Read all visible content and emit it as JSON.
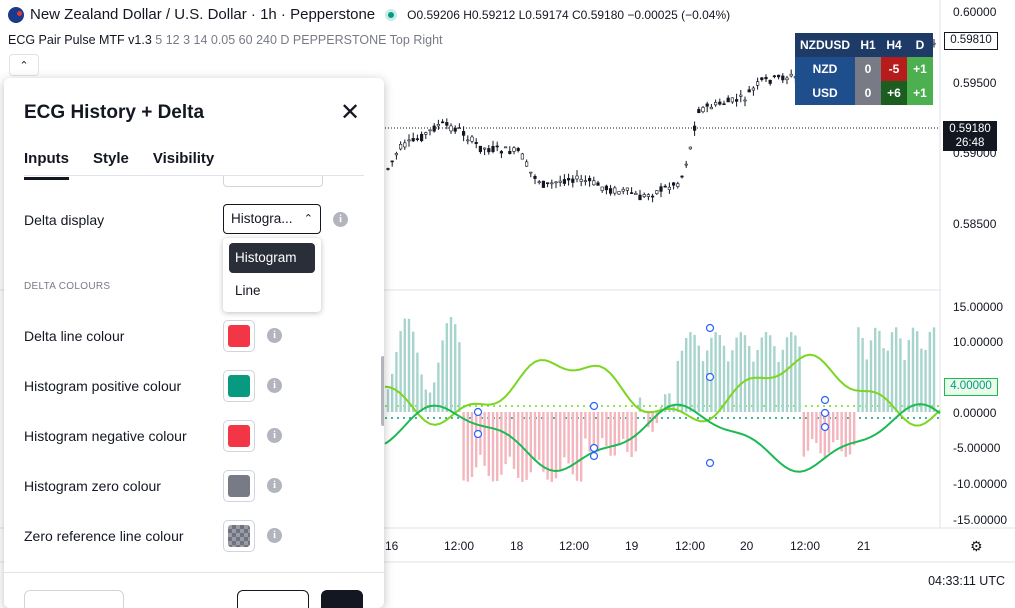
{
  "legend": {
    "symbol": "New Zealand Dollar / U.S. Dollar · 1h · Pepperstone",
    "open": "O0.59206",
    "high": "H0.59212",
    "low": "L0.59174",
    "close": "C0.59180",
    "change": "−0.00025 (−0.04%)"
  },
  "indicator": {
    "name": "ECG Pair Pulse MTF v1.3",
    "params": "5 12 3 14 0.05 60 240 D PEPPERSTONE Top Right"
  },
  "price_axis": {
    "labels": [
      "0.60000",
      "0.59500",
      "0.59000",
      "0.58500"
    ],
    "last_price": "0.59180",
    "countdown": "26:48",
    "tag_price": "0.59810"
  },
  "osc_axis": {
    "labels": [
      "15.00000",
      "10.00000",
      "5.00000",
      "0.00000",
      "-5.00000",
      "-10.00000",
      "-15.00000"
    ],
    "value_tag": "4.00000"
  },
  "strength_table": {
    "header": [
      "NZDUSD",
      "H1",
      "H4",
      "D"
    ],
    "rows": [
      {
        "label": "NZD",
        "cells": [
          "0",
          "-5",
          "+1"
        ]
      },
      {
        "label": "USD",
        "cells": [
          "0",
          "+6",
          "+1"
        ]
      }
    ],
    "colors": {
      "neutral": "#787b86",
      "negative": "#b71c1c",
      "positive_strong": "#1b5e20",
      "positive": "#4caf50"
    }
  },
  "time_axis": {
    "labels": [
      "16",
      "12:00",
      "18",
      "12:00",
      "19",
      "12:00",
      "20",
      "12:00",
      "21"
    ],
    "clock": "04:33:11 UTC"
  },
  "dialog": {
    "title": "ECG History + Delta",
    "tabs": [
      "Inputs",
      "Style",
      "Visibility"
    ],
    "active_tab": "Inputs",
    "delta_display": {
      "label": "Delta display",
      "value": "Histogra...",
      "options": [
        "Histogram",
        "Line"
      ],
      "selected": "Histogram"
    },
    "section": "DELTA COLOURS",
    "colour_rows": [
      {
        "label": "Delta line colour",
        "color": "#f23645"
      },
      {
        "label": "Histogram positive colour",
        "color": "#089981"
      },
      {
        "label": "Histogram negative colour",
        "color": "#f23645"
      },
      {
        "label": "Histogram zero colour",
        "color": "#787b86"
      },
      {
        "label": "Zero reference line colour",
        "color": "transparent"
      }
    ]
  },
  "colors": {
    "hist_positive": "#a7d4cc",
    "hist_negative": "#f4b6bd",
    "line_primary": "#1db954",
    "line_secondary": "#7ad61f"
  }
}
